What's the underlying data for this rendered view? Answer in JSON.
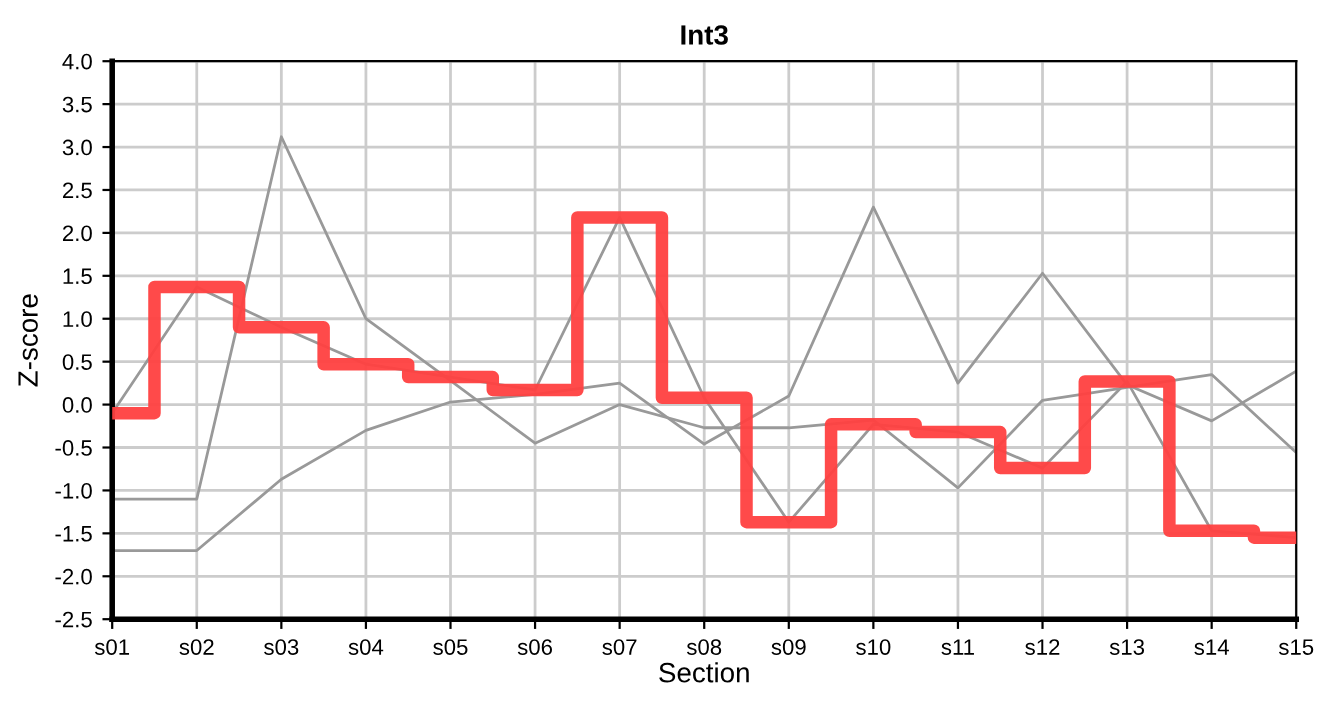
{
  "chart_data": {
    "type": "line",
    "title": "Int3",
    "xlabel": "Section",
    "ylabel": "Z-score",
    "categories": [
      "s01",
      "s02",
      "s03",
      "s04",
      "s05",
      "s06",
      "s07",
      "s08",
      "s09",
      "s10",
      "s11",
      "s12",
      "s13",
      "s14",
      "s15"
    ],
    "series": [
      {
        "color": "#999999",
        "values": [
          -0.1,
          1.37,
          0.9,
          0.47,
          0.32,
          0.17,
          2.18,
          0.08,
          -1.37,
          -0.23,
          -0.32,
          -0.74,
          0.27,
          -1.47,
          -1.55
        ]
      },
      {
        "color": "#999999",
        "values": [
          -1.1,
          -1.1,
          3.12,
          1.0,
          0.28,
          -0.45,
          0.0,
          -0.27,
          -0.27,
          -0.18,
          -0.97,
          0.05,
          0.2,
          0.35,
          -0.56
        ]
      },
      {
        "color": "#999999",
        "values": [
          -1.7,
          -1.7,
          -0.87,
          -0.3,
          0.03,
          0.12,
          0.25,
          -0.46,
          0.1,
          2.3,
          0.25,
          1.53,
          0.23,
          -0.19,
          0.39
        ]
      },
      {
        "type": "step",
        "color": "#ff4040",
        "values": [
          -0.1,
          1.37,
          0.9,
          0.47,
          0.32,
          0.17,
          2.18,
          0.08,
          -1.37,
          -0.23,
          -0.32,
          -0.74,
          0.27,
          -1.47,
          -1.55
        ]
      }
    ],
    "ylim": [
      -2.5,
      4.0
    ],
    "yticks": [
      {
        "value": -2.5,
        "label": "-2.5"
      },
      {
        "value": -2.0,
        "label": "-2.0"
      },
      {
        "value": -1.5,
        "label": "-1.5"
      },
      {
        "value": -1.0,
        "label": "-1.0"
      },
      {
        "value": -0.5,
        "label": "-0.5"
      },
      {
        "value": 0.0,
        "label": "0.0"
      },
      {
        "value": 0.5,
        "label": "0.5"
      },
      {
        "value": 1.0,
        "label": "1.0"
      },
      {
        "value": 1.5,
        "label": "1.5"
      },
      {
        "value": 2.0,
        "label": "2.0"
      },
      {
        "value": 2.5,
        "label": "2.5"
      },
      {
        "value": 3.0,
        "label": "3.0"
      },
      {
        "value": 3.5,
        "label": "3.5"
      },
      {
        "value": 4.0,
        "label": "4.0"
      }
    ],
    "grid": true,
    "marker": "none",
    "line_style": "solid"
  }
}
